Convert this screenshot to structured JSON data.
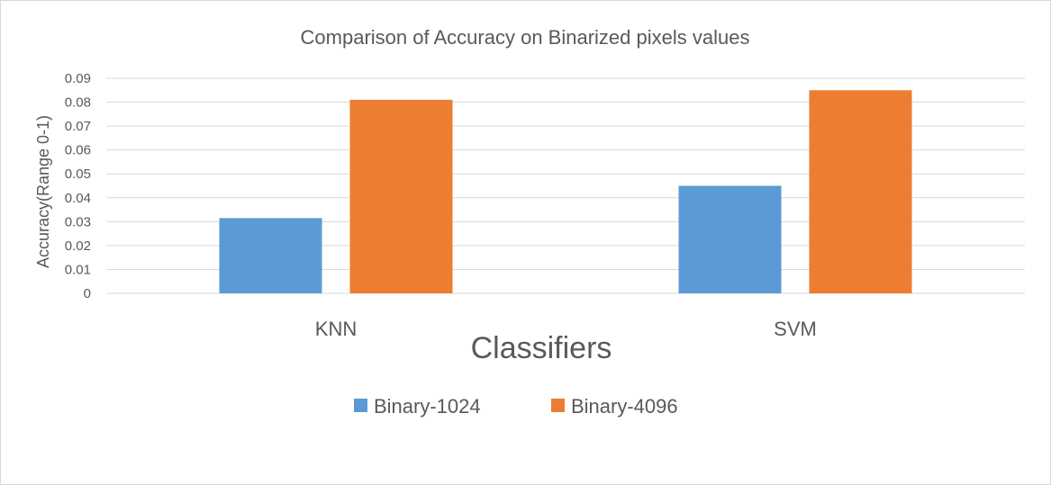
{
  "chart_data": {
    "type": "bar",
    "title": "Comparison of Accuracy on Binarized pixels values",
    "xlabel": "Classifiers",
    "ylabel": "Accuracy(Range 0-1)",
    "categories": [
      "KNN",
      "SVM"
    ],
    "series": [
      {
        "name": "Binary-1024",
        "color": "#5b9bd5",
        "values": [
          0.0315,
          0.045
        ]
      },
      {
        "name": "Binary-4096",
        "color": "#ed7d31",
        "values": [
          0.081,
          0.085
        ]
      }
    ],
    "ylim": [
      0,
      0.09
    ],
    "yticks": [
      "0",
      "0.01",
      "0.02",
      "0.03",
      "0.04",
      "0.05",
      "0.06",
      "0.07",
      "0.08",
      "0.09"
    ],
    "grid": true,
    "legend": "bottom"
  }
}
